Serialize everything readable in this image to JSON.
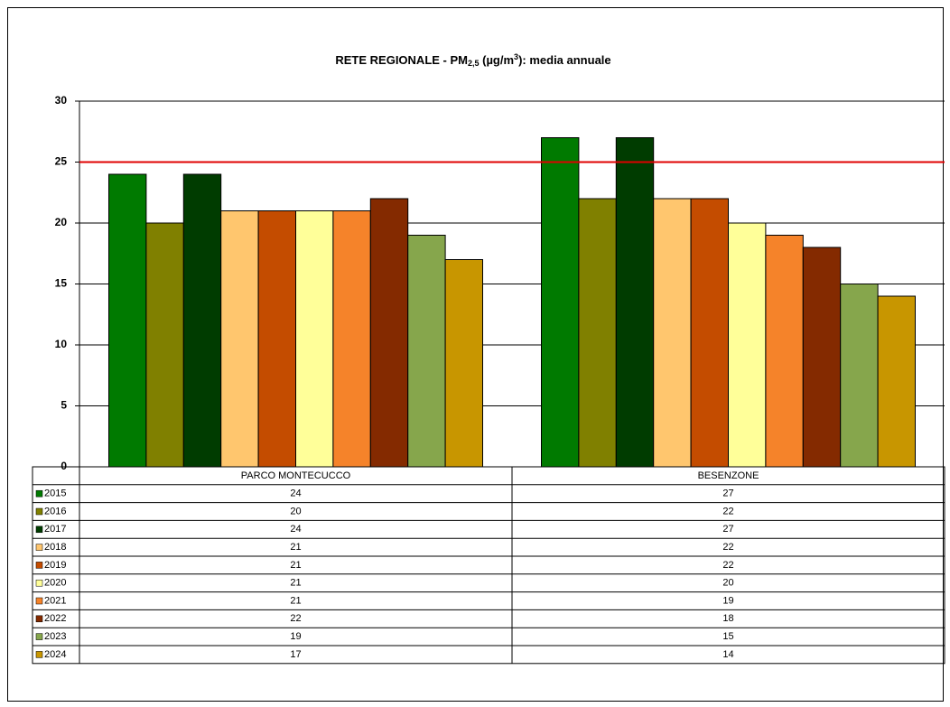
{
  "chart_data": {
    "type": "bar",
    "title": [
      "RETE REGIONALE  - PM",
      "2,5",
      " (µg/m",
      "3",
      "): media annuale"
    ],
    "categories": [
      "PARCO MONTECUCCO",
      "BESENZONE"
    ],
    "series": [
      {
        "name": "2015",
        "color": "#007a00",
        "values": [
          24,
          27
        ]
      },
      {
        "name": "2016",
        "color": "#808000",
        "values": [
          20,
          22
        ]
      },
      {
        "name": "2017",
        "color": "#003c00",
        "values": [
          24,
          27
        ]
      },
      {
        "name": "2018",
        "color": "#ffc66e",
        "values": [
          21,
          22
        ]
      },
      {
        "name": "2019",
        "color": "#c44c00",
        "values": [
          21,
          22
        ]
      },
      {
        "name": "2020",
        "color": "#ffff99",
        "values": [
          21,
          20
        ]
      },
      {
        "name": "2021",
        "color": "#f5832a",
        "values": [
          21,
          19
        ]
      },
      {
        "name": "2022",
        "color": "#842a00",
        "values": [
          22,
          18
        ]
      },
      {
        "name": "2023",
        "color": "#86a64c",
        "values": [
          19,
          15
        ]
      },
      {
        "name": "2024",
        "color": "#c89600",
        "values": [
          17,
          14
        ]
      }
    ],
    "ylim": [
      0,
      30
    ],
    "yticks": [
      0,
      5,
      10,
      15,
      20,
      25,
      30
    ],
    "grid": true,
    "reference_line": {
      "value": 25,
      "color": "#e00000"
    },
    "data_table": true
  }
}
